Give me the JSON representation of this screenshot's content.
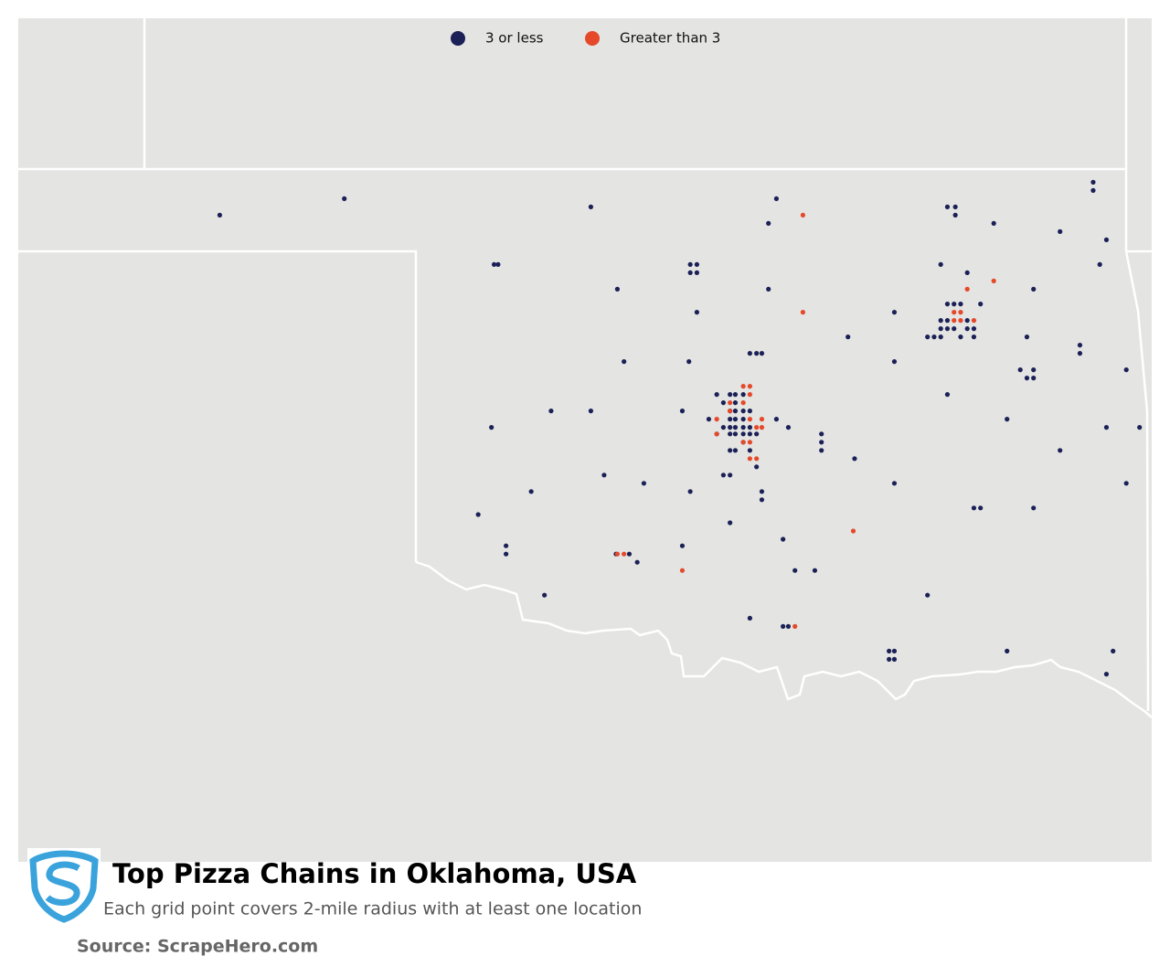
{
  "map_data": {
    "title": "Top Pizza Chains in Oklahoma, USA",
    "subtitle": "Each grid point covers 2-mile radius with at least one location",
    "source": "Source: ScrapeHero.com",
    "series": [
      {
        "name": "3 or less",
        "color": "#1b2157",
        "points": [
          [
            -101.48,
            36.72
          ],
          [
            -100.54,
            36.82
          ],
          [
            -98.68,
            36.77
          ],
          [
            -97.28,
            36.82
          ],
          [
            -97.34,
            36.67
          ],
          [
            -99.41,
            36.42
          ],
          [
            -99.38,
            36.42
          ],
          [
            -97.93,
            36.42
          ],
          [
            -97.88,
            36.42
          ],
          [
            -97.93,
            36.37
          ],
          [
            -97.88,
            36.37
          ],
          [
            -98.48,
            36.27
          ],
          [
            -97.34,
            36.27
          ],
          [
            -97.88,
            36.13
          ],
          [
            -98.43,
            35.83
          ],
          [
            -97.48,
            35.88
          ],
          [
            -97.43,
            35.88
          ],
          [
            -97.39,
            35.88
          ],
          [
            -97.94,
            35.83
          ],
          [
            -98.98,
            35.53
          ],
          [
            -98.68,
            35.53
          ],
          [
            -97.99,
            35.53
          ],
          [
            -99.43,
            35.43
          ],
          [
            -98.58,
            35.14
          ],
          [
            -98.28,
            35.09
          ],
          [
            -99.13,
            35.04
          ],
          [
            -97.93,
            35.04
          ],
          [
            -99.53,
            34.9
          ],
          [
            -99.32,
            34.71
          ],
          [
            -99.32,
            34.66
          ],
          [
            -99.03,
            34.41
          ],
          [
            -98.49,
            34.66
          ],
          [
            -98.39,
            34.66
          ],
          [
            -98.33,
            34.61
          ],
          [
            -97.99,
            34.71
          ],
          [
            -97.63,
            34.85
          ],
          [
            -97.39,
            35.04
          ],
          [
            -97.39,
            34.99
          ],
          [
            -97.23,
            34.75
          ],
          [
            -97.14,
            34.56
          ],
          [
            -96.99,
            34.56
          ],
          [
            -97.48,
            34.27
          ],
          [
            -97.23,
            34.22
          ],
          [
            -97.19,
            34.22
          ],
          [
            -96.14,
            34.41
          ],
          [
            -96.43,
            34.07
          ],
          [
            -96.39,
            34.07
          ],
          [
            -96.43,
            34.02
          ],
          [
            -96.39,
            34.02
          ],
          [
            -95.54,
            34.07
          ],
          [
            -94.74,
            34.07
          ],
          [
            -94.79,
            33.93
          ],
          [
            -95.99,
            36.77
          ],
          [
            -95.93,
            36.77
          ],
          [
            -95.93,
            36.72
          ],
          [
            -95.64,
            36.67
          ],
          [
            -95.14,
            36.62
          ],
          [
            -94.89,
            36.92
          ],
          [
            -94.89,
            36.87
          ],
          [
            -94.79,
            36.57
          ],
          [
            -94.84,
            36.42
          ],
          [
            -96.04,
            36.42
          ],
          [
            -95.84,
            36.37
          ],
          [
            -95.34,
            36.27
          ],
          [
            -96.39,
            36.13
          ],
          [
            -96.74,
            35.98
          ],
          [
            -95.74,
            36.18
          ],
          [
            -96.39,
            35.83
          ],
          [
            -95.99,
            35.63
          ],
          [
            -95.54,
            35.48
          ],
          [
            -95.39,
            35.98
          ],
          [
            -94.99,
            35.93
          ],
          [
            -94.99,
            35.88
          ],
          [
            -95.44,
            35.78
          ],
          [
            -95.34,
            35.78
          ],
          [
            -95.39,
            35.73
          ],
          [
            -95.34,
            35.73
          ],
          [
            -94.64,
            35.78
          ],
          [
            -94.79,
            35.43
          ],
          [
            -94.54,
            35.43
          ],
          [
            -95.14,
            35.29
          ],
          [
            -94.64,
            35.09
          ],
          [
            -95.79,
            34.94
          ],
          [
            -95.74,
            34.94
          ],
          [
            -95.34,
            34.94
          ],
          [
            -96.69,
            35.24
          ],
          [
            -96.39,
            35.09
          ],
          [
            -96.94,
            35.39
          ],
          [
            -96.94,
            35.34
          ],
          [
            -96.94,
            35.29
          ],
          [
            -97.19,
            35.43
          ],
          [
            -97.28,
            35.48
          ],
          [
            -97.68,
            35.14
          ],
          [
            -97.63,
            35.14
          ],
          [
            -97.73,
            35.63
          ],
          [
            -97.63,
            35.63
          ],
          [
            -97.59,
            35.63
          ],
          [
            -97.53,
            35.63
          ],
          [
            -97.68,
            35.58
          ],
          [
            -97.59,
            35.58
          ],
          [
            -97.63,
            35.53
          ],
          [
            -97.59,
            35.53
          ],
          [
            -97.53,
            35.53
          ],
          [
            -97.79,
            35.48
          ],
          [
            -97.63,
            35.48
          ],
          [
            -97.59,
            35.48
          ],
          [
            -97.53,
            35.48
          ],
          [
            -97.48,
            35.53
          ],
          [
            -97.68,
            35.43
          ],
          [
            -97.63,
            35.43
          ],
          [
            -97.59,
            35.43
          ],
          [
            -97.53,
            35.43
          ],
          [
            -97.48,
            35.43
          ],
          [
            -97.73,
            35.39
          ],
          [
            -97.63,
            35.39
          ],
          [
            -97.59,
            35.39
          ],
          [
            -97.53,
            35.39
          ],
          [
            -97.48,
            35.39
          ],
          [
            -97.43,
            35.39
          ],
          [
            -97.53,
            35.34
          ],
          [
            -97.63,
            35.29
          ],
          [
            -97.59,
            35.29
          ],
          [
            -97.48,
            35.29
          ],
          [
            -97.43,
            35.19
          ],
          [
            -95.99,
            36.18
          ],
          [
            -95.94,
            36.18
          ],
          [
            -95.89,
            36.18
          ],
          [
            -96.04,
            36.08
          ],
          [
            -95.99,
            36.08
          ],
          [
            -95.84,
            36.08
          ],
          [
            -96.04,
            36.03
          ],
          [
            -95.99,
            36.03
          ],
          [
            -95.94,
            36.03
          ],
          [
            -95.84,
            36.03
          ],
          [
            -95.79,
            36.03
          ],
          [
            -96.14,
            35.98
          ],
          [
            -96.09,
            35.98
          ],
          [
            -96.04,
            35.98
          ],
          [
            -95.89,
            35.98
          ],
          [
            -95.79,
            35.98
          ]
        ]
      },
      {
        "name": "Greater than 3",
        "color": "#e5492a",
        "points": [
          [
            -97.08,
            36.72
          ],
          [
            -97.08,
            36.13
          ],
          [
            -95.64,
            36.32
          ],
          [
            -95.84,
            36.27
          ],
          [
            -97.53,
            35.68
          ],
          [
            -97.48,
            35.68
          ],
          [
            -97.48,
            35.63
          ],
          [
            -97.63,
            35.58
          ],
          [
            -97.53,
            35.58
          ],
          [
            -97.63,
            35.53
          ],
          [
            -97.73,
            35.48
          ],
          [
            -97.48,
            35.48
          ],
          [
            -97.39,
            35.48
          ],
          [
            -97.43,
            35.43
          ],
          [
            -97.39,
            35.43
          ],
          [
            -97.73,
            35.39
          ],
          [
            -97.53,
            35.34
          ],
          [
            -97.48,
            35.34
          ],
          [
            -97.48,
            35.24
          ],
          [
            -97.43,
            35.24
          ],
          [
            -96.7,
            34.8
          ],
          [
            -97.99,
            34.56
          ],
          [
            -98.48,
            34.66
          ],
          [
            -98.43,
            34.66
          ],
          [
            -97.14,
            34.22
          ],
          [
            -95.94,
            36.13
          ],
          [
            -95.89,
            36.13
          ],
          [
            -95.94,
            36.08
          ],
          [
            -95.89,
            36.08
          ],
          [
            -95.79,
            36.08
          ]
        ]
      }
    ]
  }
}
